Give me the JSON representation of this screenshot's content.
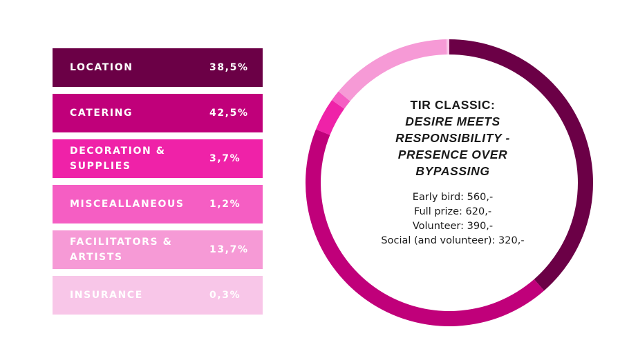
{
  "chart_data": {
    "type": "pie",
    "title": "TIR CLASSIC:",
    "subtitle": "DESIRE MEETS RESPONSIBILITY - PRESENCE OVER BYPASSING",
    "slices": [
      {
        "label": "LOCATION",
        "value": 38.5,
        "display": "38,5%",
        "color": "#6b0046",
        "text_color": "#ffffff"
      },
      {
        "label": "CATERING",
        "value": 42.5,
        "display": "42,5%",
        "color": "#c0007a",
        "text_color": "#ffffff"
      },
      {
        "label": "DECORATION & SUPPLIES",
        "value": 3.7,
        "display": "3,7%",
        "color": "#ef22a8",
        "text_color": "#ffffff"
      },
      {
        "label": "MISCEALLANEOUS",
        "value": 1.2,
        "display": "1,2%",
        "color": "#f55ec3",
        "text_color": "#ffffff"
      },
      {
        "label": "FACILITATORS & ARTISTS",
        "value": 13.7,
        "display": "13,7%",
        "color": "#f69ad6",
        "text_color": "#ffffff"
      },
      {
        "label": "INSURANCE",
        "value": 0.3,
        "display": "0,3%",
        "color": "#f8c6e8",
        "text_color": "#ffffff"
      }
    ],
    "donut": true
  },
  "prices": [
    "Early bird: 560,-",
    "Full prize: 620,-",
    "Volunteer: 390,-",
    "Social (and volunteer): 320,-"
  ]
}
